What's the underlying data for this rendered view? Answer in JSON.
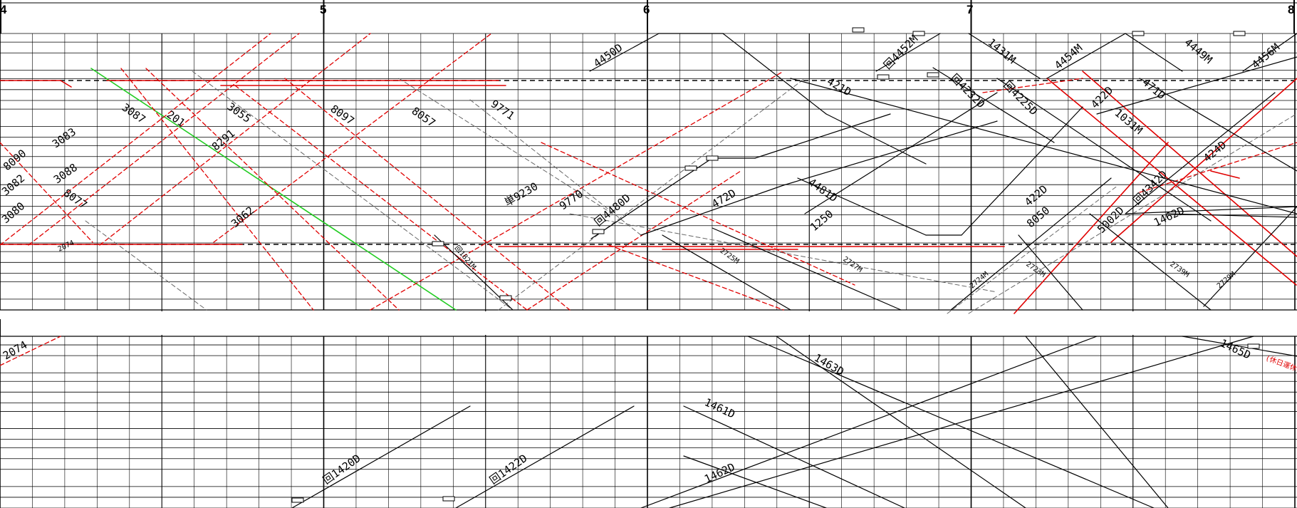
{
  "hours": [
    "4",
    "5",
    "6",
    "7",
    "8"
  ],
  "colors": {
    "grid": "#000000",
    "train_black": "#000000",
    "train_red": "#e00000",
    "train_grey": "#666666",
    "train_green": "#22cc22"
  },
  "upper_panel": {
    "train_labels": [
      "4450D",
      "回4452M",
      "1431M",
      "4454M",
      "4449M",
      "4456M",
      "421D",
      "回4232D",
      "回4225D",
      "422D",
      "471D",
      "8090",
      "3083",
      "3087",
      "201",
      "3055",
      "8097",
      "8057",
      "9771",
      "3082",
      "3088",
      "3080",
      "8077",
      "8291",
      "3062",
      "2074",
      "回1821M",
      "単9230",
      "9770",
      "回4480D",
      "472D",
      "4481D",
      "1250",
      "2725M",
      "2724M",
      "2727M",
      "2723M",
      "1031M",
      "424D",
      "422D",
      "8050",
      "5002D",
      "回4342D",
      "1462D",
      "2739M",
      "2729M"
    ]
  },
  "lower_panel": {
    "train_labels": [
      "2074",
      "1463D",
      "1465D",
      "1461D",
      "1462D",
      "回1420D",
      "回1422D"
    ],
    "annotation": "(休日運休)"
  }
}
